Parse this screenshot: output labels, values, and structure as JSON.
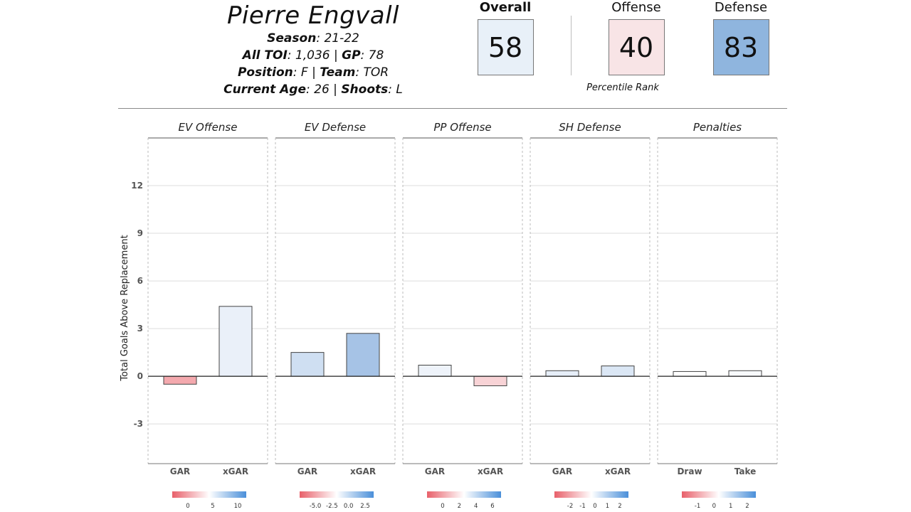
{
  "header": {
    "player_name": "Pierre Engvall",
    "season_label": "Season",
    "season_value": ": 21-22",
    "toi_label": "All TOI",
    "toi_value": ": 1,036 | ",
    "gp_label": "GP",
    "gp_value": ": 78",
    "position_label": "Position",
    "position_value": ": F | ",
    "team_label": "Team",
    "team_value": ": TOR",
    "age_label": "Current Age",
    "age_value": ": 26 | ",
    "shoots_label": "Shoots",
    "shoots_value": ": L"
  },
  "scores": {
    "overall": {
      "label": "Overall",
      "value": "58",
      "color": "#e8f0f8"
    },
    "offense": {
      "label": "Offense",
      "value": "40",
      "color": "#f8e4e6"
    },
    "defense": {
      "label": "Defense",
      "value": "83",
      "color": "#8fb5de"
    },
    "percentile_note": "Percentile Rank"
  },
  "chart_data": {
    "type": "bar",
    "ylabel": "Total Goals Above Replacement",
    "ylim": [
      -5.5,
      15
    ],
    "yticks": [
      -3,
      0,
      3,
      6,
      9,
      12
    ],
    "grid": true,
    "panels": [
      {
        "title": "EV Offense",
        "categories": [
          "GAR",
          "xGAR"
        ],
        "values": [
          -0.5,
          4.4
        ],
        "colors": [
          "#f4a9ae",
          "#eaf0f9"
        ],
        "legend": {
          "ticks": [
            "0",
            "5",
            "10"
          ]
        }
      },
      {
        "title": "EV Defense",
        "categories": [
          "GAR",
          "xGAR"
        ],
        "values": [
          1.5,
          2.7
        ],
        "colors": [
          "#cfdff2",
          "#a6c3e6"
        ],
        "legend": {
          "ticks": [
            "-5.0",
            "-2.5",
            "0.0",
            "2.5"
          ]
        }
      },
      {
        "title": "PP Offense",
        "categories": [
          "GAR",
          "xGAR"
        ],
        "values": [
          0.7,
          -0.6
        ],
        "colors": [
          "#eef3fa",
          "#f8d3d6"
        ],
        "legend": {
          "ticks": [
            "0",
            "2",
            "4",
            "6"
          ]
        }
      },
      {
        "title": "SH Defense",
        "categories": [
          "GAR",
          "xGAR"
        ],
        "values": [
          0.35,
          0.65
        ],
        "colors": [
          "#e6eef8",
          "#dbe7f5"
        ],
        "legend": {
          "ticks": [
            "-2",
            "-1",
            "0",
            "1",
            "2"
          ]
        }
      },
      {
        "title": "Penalties",
        "categories": [
          "Draw",
          "Take"
        ],
        "values": [
          0.3,
          0.35
        ],
        "colors": [
          "#ffffff",
          "#f8fafd"
        ],
        "legend": {
          "ticks": [
            "-1",
            "0",
            "1",
            "2"
          ]
        }
      }
    ],
    "colorscale": {
      "low": "#e8606a",
      "mid": "#ffffff",
      "high": "#4a8fd9"
    }
  }
}
